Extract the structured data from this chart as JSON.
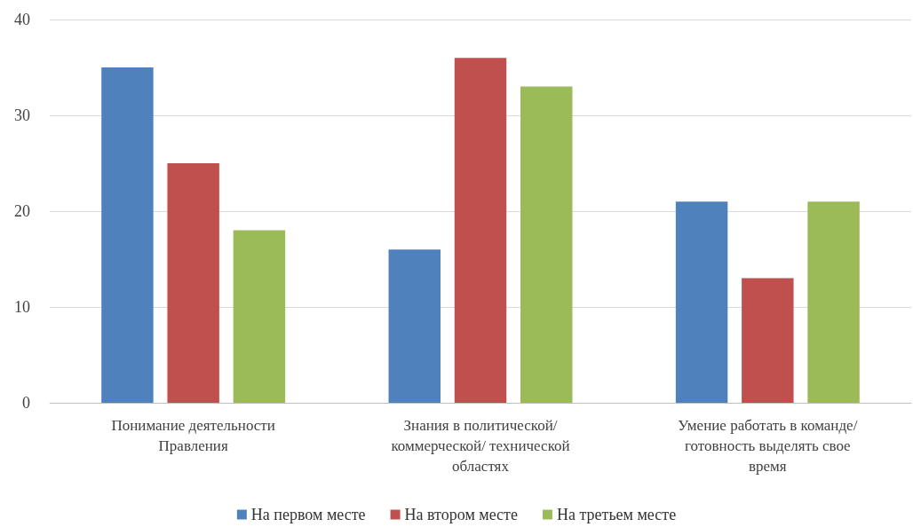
{
  "chart_data": {
    "type": "bar",
    "categories": [
      "Понимание деятельности Правления",
      "Знания в политической/ коммерческой/ технической областях",
      "Умение работать в команде/ готовность выделять свое время"
    ],
    "series": [
      {
        "name": "На первом месте",
        "color": "#4f81bd",
        "values": [
          35,
          16,
          21
        ]
      },
      {
        "name": "На втором месте",
        "color": "#c0504d",
        "values": [
          25,
          36,
          13
        ]
      },
      {
        "name": "На третьем месте",
        "color": "#9bbb59",
        "values": [
          18,
          33,
          21
        ]
      }
    ],
    "ylim": [
      0,
      40
    ],
    "yticks": [
      0,
      10,
      20,
      30,
      40
    ],
    "grid": "y",
    "legend": "bottom"
  }
}
